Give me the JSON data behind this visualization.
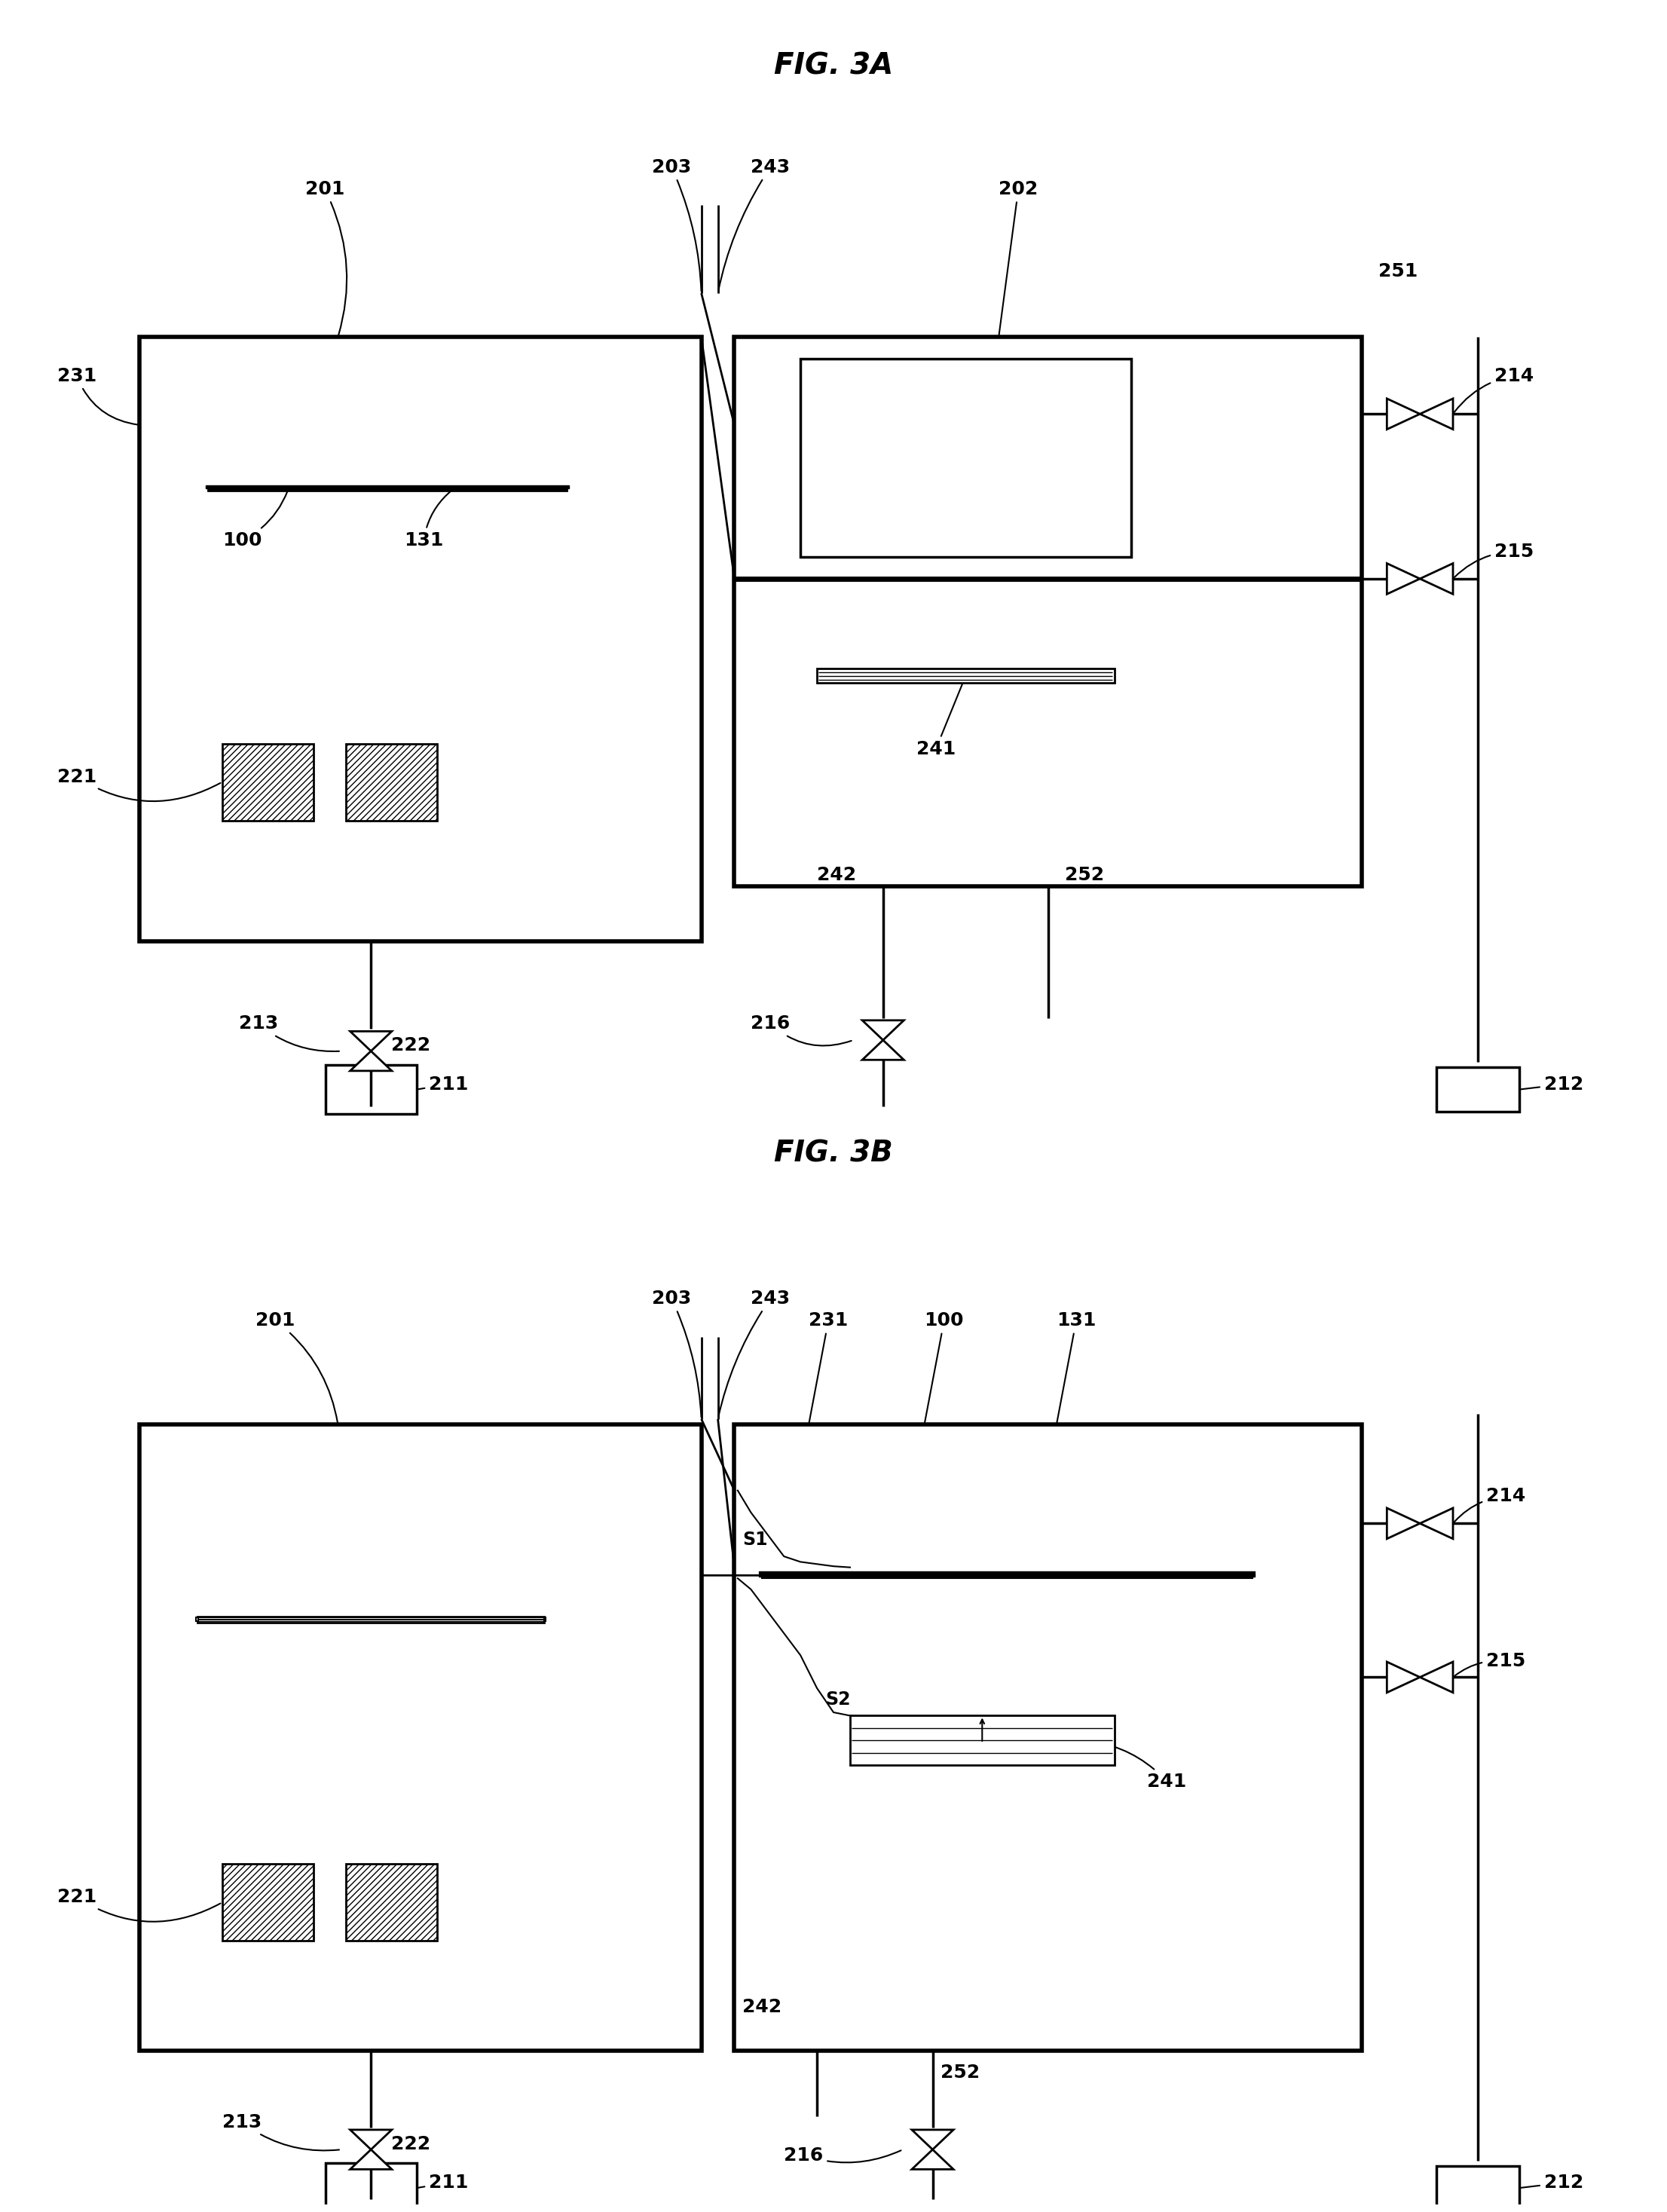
{
  "fig_title_A": "FIG. 3A",
  "fig_title_B": "FIG. 3B",
  "bg": "#ffffff",
  "lc": "#000000",
  "title_fs": 28,
  "lbl_fs": 18,
  "fig_w": 21.92,
  "fig_h": 29.15
}
